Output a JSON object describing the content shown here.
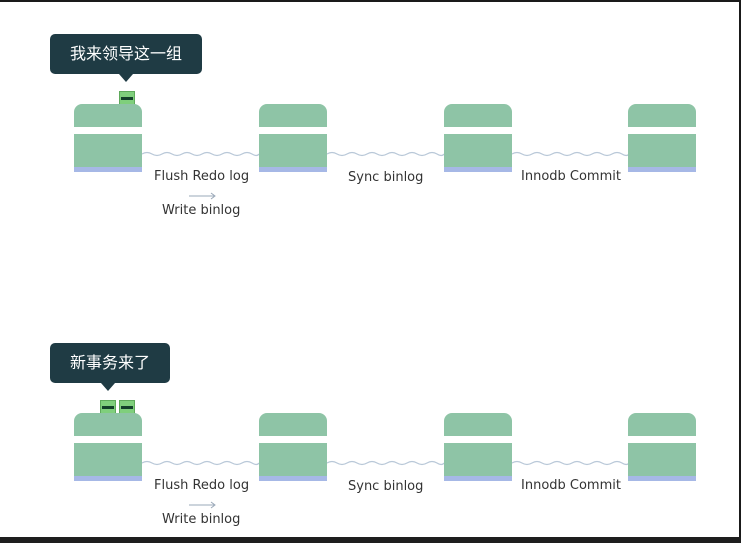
{
  "panels": [
    {
      "bubble_text": "我来领导这一组",
      "marker_count": 1,
      "labels": {
        "flush_redo_log": "Flush Redo log",
        "write_binlog": "Write binlog",
        "sync_binlog": "Sync binlog",
        "innodb_commit": "Innodb Commit"
      }
    },
    {
      "bubble_text": "新事务来了",
      "marker_count": 2,
      "labels": {
        "flush_redo_log": "Flush Redo log",
        "write_binlog": "Write binlog",
        "sync_binlog": "Sync binlog",
        "innodb_commit": "Innodb Commit"
      }
    }
  ],
  "colors": {
    "block_green": "#8ec4a6",
    "block_base": "#a6b8e6",
    "bubble_bg": "#1f3b44",
    "marker_green": "#7fcf7c",
    "wire": "#b9c8d8"
  }
}
